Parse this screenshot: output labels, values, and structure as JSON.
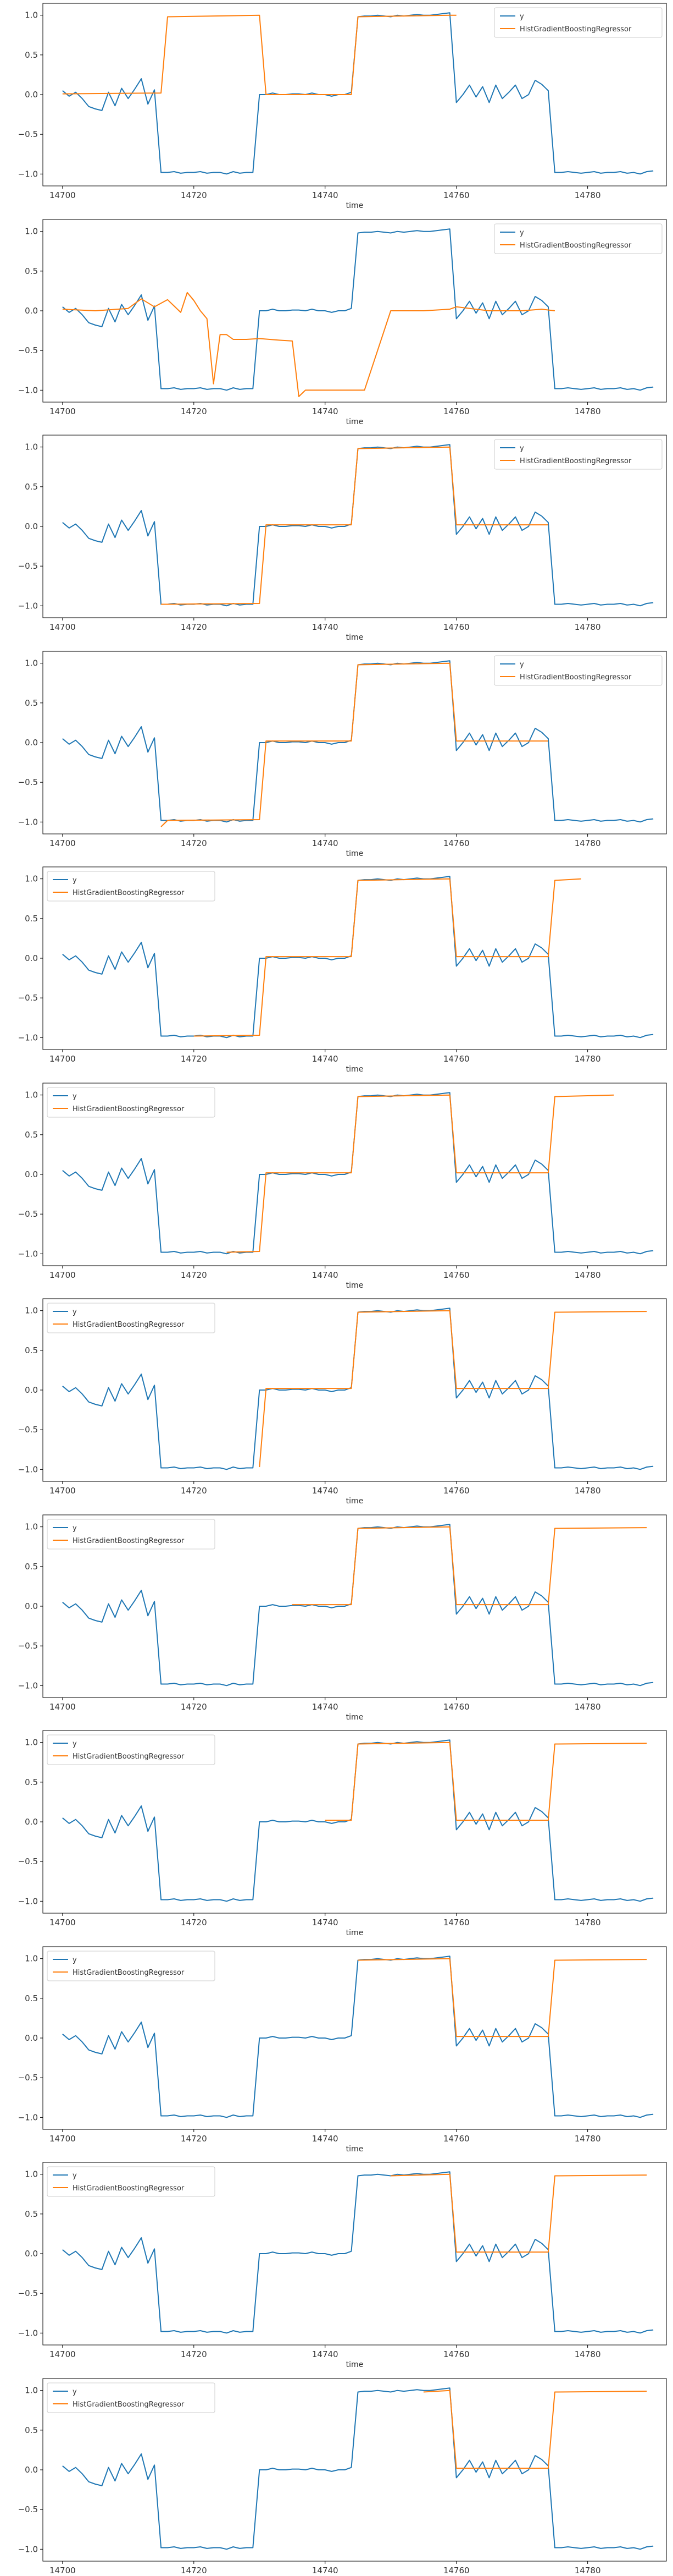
{
  "chart_data": {
    "type": "line",
    "xlabel": "time",
    "x_ticks": [
      14700,
      14720,
      14740,
      14760,
      14780
    ],
    "y_ticks": [
      -1.0,
      -0.5,
      0.0,
      0.5,
      1.0
    ],
    "y_tick_labels": [
      "−1.0",
      "−0.5",
      "0.0",
      "0.5",
      "1.0"
    ],
    "xlim": [
      14697,
      14792
    ],
    "ylim": [
      -1.15,
      1.15
    ],
    "grid": false,
    "y_series": {
      "name": "y",
      "color": "#1f77b4",
      "x_start": 14700,
      "values": [
        0.05,
        -0.02,
        0.03,
        -0.05,
        -0.15,
        -0.18,
        -0.2,
        0.03,
        -0.14,
        0.08,
        -0.05,
        0.07,
        0.2,
        -0.12,
        0.06,
        -0.98,
        -0.98,
        -0.97,
        -0.99,
        -0.98,
        -0.98,
        -0.97,
        -0.99,
        -0.98,
        -0.98,
        -1.0,
        -0.97,
        -0.99,
        -0.98,
        -0.98,
        0.0,
        0.0,
        0.02,
        0.0,
        0.0,
        0.01,
        0.01,
        0.0,
        0.02,
        0.0,
        0.0,
        -0.02,
        0.0,
        0.0,
        0.03,
        0.98,
        0.99,
        0.99,
        1.0,
        0.99,
        0.98,
        1.0,
        0.99,
        1.0,
        1.01,
        1.0,
        1.0,
        1.01,
        1.02,
        1.03,
        -0.1,
        0.0,
        0.12,
        -0.03,
        0.1,
        -0.1,
        0.12,
        -0.05,
        0.03,
        0.12,
        -0.05,
        0.0,
        0.18,
        0.13,
        0.05,
        -0.98,
        -0.98,
        -0.97,
        -0.98,
        -0.99,
        -0.98,
        -0.97,
        -0.99,
        -0.98,
        -0.98,
        -0.97,
        -0.99,
        -0.98,
        -1.0,
        -0.97,
        -0.96
      ]
    },
    "prediction_series_name": "HistGradientBoostingRegressor",
    "prediction_color": "#ff7f0e",
    "subplots": [
      {
        "legend": "upper right",
        "x": [
          14700,
          14715,
          14716,
          14730,
          14731,
          14744,
          14745,
          14759,
          14760
        ],
        "y": [
          0.01,
          0.02,
          0.98,
          1.0,
          0.0,
          0.0,
          0.98,
          1.0,
          1.0
        ]
      },
      {
        "legend": "upper right",
        "x": [
          14700,
          14705,
          14710,
          14712,
          14714,
          14716,
          14718,
          14719,
          14720,
          14721,
          14722,
          14723,
          14724,
          14725,
          14726,
          14728,
          14730,
          14733,
          14735,
          14736,
          14737,
          14740,
          14745,
          14746,
          14750,
          14755,
          14759,
          14760,
          14765,
          14770,
          14773,
          14775
        ],
        "y": [
          0.02,
          0.0,
          0.03,
          0.15,
          0.05,
          0.14,
          -0.02,
          0.23,
          0.13,
          0.0,
          -0.1,
          -0.92,
          -0.3,
          -0.3,
          -0.36,
          -0.36,
          -0.35,
          -0.37,
          -0.38,
          -1.08,
          -1.0,
          -1.0,
          -1.0,
          -1.0,
          0.0,
          0.0,
          0.02,
          0.05,
          0.0,
          0.0,
          0.02,
          0.0
        ]
      },
      {
        "legend": "upper right",
        "x": [
          14715,
          14716,
          14730,
          14731,
          14744,
          14745,
          14759,
          14760,
          14774
        ],
        "y": [
          -0.98,
          -0.98,
          -0.97,
          0.02,
          0.02,
          0.98,
          1.0,
          0.02,
          0.02
        ]
      },
      {
        "legend": "upper right",
        "x": [
          14715,
          14716,
          14730,
          14731,
          14744,
          14745,
          14759,
          14760,
          14774
        ],
        "y": [
          -1.06,
          -0.98,
          -0.97,
          0.02,
          0.02,
          0.98,
          1.0,
          0.02,
          0.02
        ]
      },
      {
        "legend": "upper left",
        "x": [
          14720,
          14730,
          14731,
          14744,
          14745,
          14759,
          14760,
          14774,
          14775,
          14779
        ],
        "y": [
          -0.98,
          -0.97,
          0.02,
          0.02,
          0.98,
          1.0,
          0.02,
          0.02,
          0.98,
          1.0
        ]
      },
      {
        "legend": "upper left",
        "x": [
          14725,
          14730,
          14731,
          14744,
          14745,
          14759,
          14760,
          14774,
          14775,
          14784
        ],
        "y": [
          -0.98,
          -0.97,
          0.02,
          0.02,
          0.98,
          1.0,
          0.02,
          0.02,
          0.98,
          1.0
        ]
      },
      {
        "legend": "upper left",
        "x": [
          14730,
          14731,
          14744,
          14745,
          14759,
          14760,
          14774,
          14775,
          14789
        ],
        "y": [
          -0.97,
          0.02,
          0.02,
          0.98,
          1.0,
          0.02,
          0.02,
          0.98,
          0.99
        ]
      },
      {
        "legend": "upper left",
        "x": [
          14735,
          14744,
          14745,
          14759,
          14760,
          14774,
          14775,
          14789
        ],
        "y": [
          0.02,
          0.02,
          0.98,
          1.0,
          0.02,
          0.02,
          0.98,
          0.99
        ]
      },
      {
        "legend": "upper left",
        "x": [
          14740,
          14744,
          14745,
          14759,
          14760,
          14774,
          14775,
          14789
        ],
        "y": [
          0.02,
          0.02,
          0.98,
          1.0,
          0.02,
          0.02,
          0.98,
          0.99
        ]
      },
      {
        "legend": "upper left",
        "x": [
          14745,
          14759,
          14760,
          14774,
          14775,
          14789
        ],
        "y": [
          0.98,
          1.0,
          0.02,
          0.02,
          0.98,
          0.99
        ]
      },
      {
        "legend": "upper left",
        "x": [
          14750,
          14759,
          14760,
          14774,
          14775,
          14789
        ],
        "y": [
          0.98,
          1.0,
          0.02,
          0.02,
          0.98,
          0.99
        ]
      },
      {
        "legend": "upper left",
        "x": [
          14755,
          14759,
          14760,
          14774,
          14775,
          14789
        ],
        "y": [
          0.98,
          1.0,
          0.02,
          0.02,
          0.98,
          0.99
        ]
      }
    ]
  }
}
